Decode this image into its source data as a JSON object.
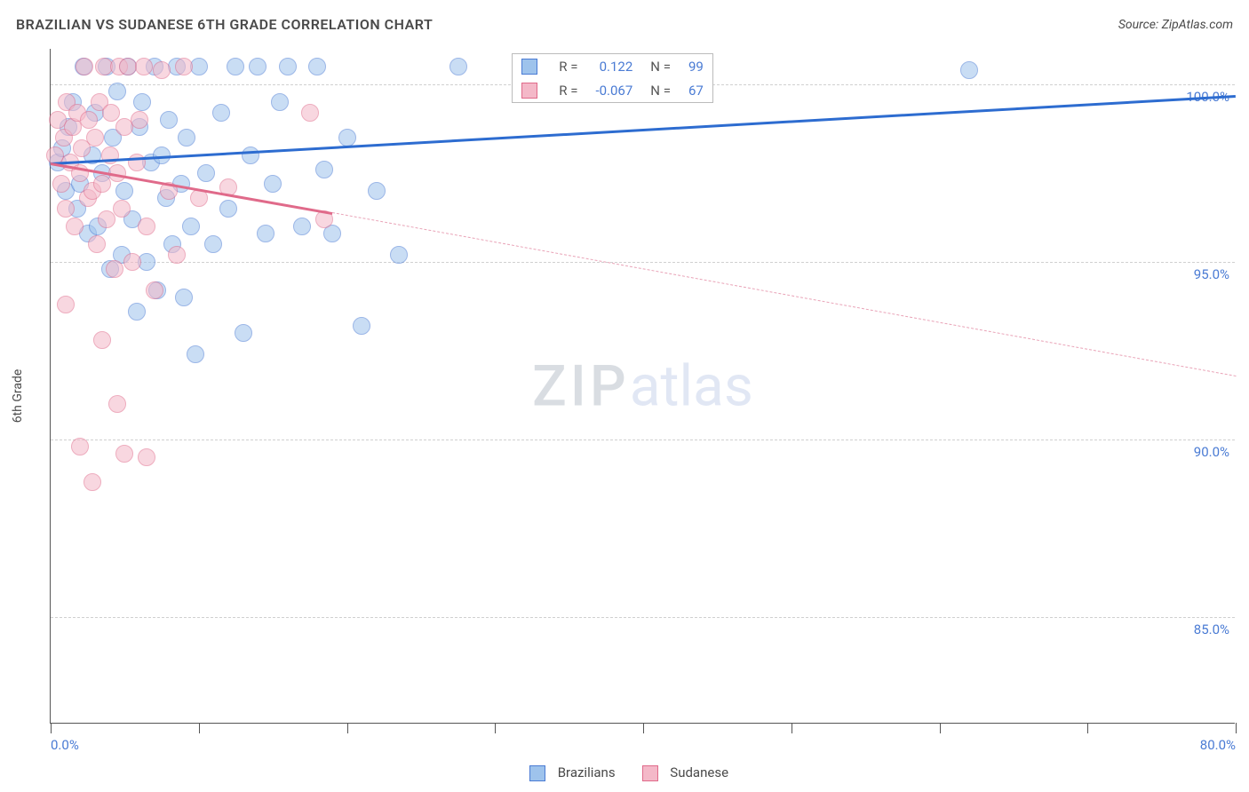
{
  "title": "BRAZILIAN VS SUDANESE 6TH GRADE CORRELATION CHART",
  "source": "Source: ZipAtlas.com",
  "yaxis_title": "6th Grade",
  "watermark": {
    "part1": "ZIP",
    "part2": "atlas"
  },
  "chart": {
    "type": "scatter",
    "xlim": [
      0,
      80
    ],
    "ylim": [
      82,
      101
    ],
    "x_tick_positions": [
      0,
      10,
      20,
      30,
      40,
      50,
      60,
      70,
      80
    ],
    "x_tick_labels": {
      "0": "0.0%",
      "80": "80.0%"
    },
    "y_ticks": [
      85,
      90,
      95,
      100
    ],
    "y_tick_labels": [
      "85.0%",
      "90.0%",
      "95.0%",
      "100.0%"
    ],
    "background_color": "#ffffff",
    "grid_color": "#d0d0d0",
    "axis_color": "#555555",
    "tick_fontsize": 15,
    "tick_color": "#4a7bd4",
    "marker_radius": 10,
    "marker_opacity": 0.55,
    "series": [
      {
        "name": "Brazilians",
        "fill": "#9ec3ec",
        "stroke": "#4a7bd4",
        "trend": {
          "x1": 0,
          "y1": 97.8,
          "x2": 80,
          "y2": 99.7,
          "color": "#2d6cd0",
          "width": 2.5,
          "dashed": false
        },
        "R": "0.122",
        "N": "99",
        "points": [
          [
            0.5,
            97.8
          ],
          [
            0.8,
            98.2
          ],
          [
            1.0,
            97.0
          ],
          [
            1.2,
            98.8
          ],
          [
            1.5,
            99.5
          ],
          [
            1.8,
            96.5
          ],
          [
            2.0,
            97.2
          ],
          [
            2.2,
            100.5
          ],
          [
            2.5,
            95.8
          ],
          [
            2.8,
            98.0
          ],
          [
            3.0,
            99.2
          ],
          [
            3.2,
            96.0
          ],
          [
            3.5,
            97.5
          ],
          [
            3.8,
            100.5
          ],
          [
            4.0,
            94.8
          ],
          [
            4.2,
            98.5
          ],
          [
            4.5,
            99.8
          ],
          [
            4.8,
            95.2
          ],
          [
            5.0,
            97.0
          ],
          [
            5.2,
            100.5
          ],
          [
            5.5,
            96.2
          ],
          [
            5.8,
            93.6
          ],
          [
            6.0,
            98.8
          ],
          [
            6.2,
            99.5
          ],
          [
            6.5,
            95.0
          ],
          [
            6.8,
            97.8
          ],
          [
            7.0,
            100.5
          ],
          [
            7.2,
            94.2
          ],
          [
            7.5,
            98.0
          ],
          [
            7.8,
            96.8
          ],
          [
            8.0,
            99.0
          ],
          [
            8.2,
            95.5
          ],
          [
            8.5,
            100.5
          ],
          [
            8.8,
            97.2
          ],
          [
            9.0,
            94.0
          ],
          [
            9.2,
            98.5
          ],
          [
            9.5,
            96.0
          ],
          [
            9.8,
            92.4
          ],
          [
            10.0,
            100.5
          ],
          [
            10.5,
            97.5
          ],
          [
            11.0,
            95.5
          ],
          [
            11.5,
            99.2
          ],
          [
            12.0,
            96.5
          ],
          [
            12.5,
            100.5
          ],
          [
            13.0,
            93.0
          ],
          [
            13.5,
            98.0
          ],
          [
            14.0,
            100.5
          ],
          [
            14.5,
            95.8
          ],
          [
            15.0,
            97.2
          ],
          [
            15.5,
            99.5
          ],
          [
            16.0,
            100.5
          ],
          [
            17.0,
            96.0
          ],
          [
            18.0,
            100.5
          ],
          [
            18.5,
            97.6
          ],
          [
            19.0,
            95.8
          ],
          [
            20.0,
            98.5
          ],
          [
            21.0,
            93.2
          ],
          [
            22.0,
            97.0
          ],
          [
            23.5,
            95.2
          ],
          [
            27.5,
            100.5
          ],
          [
            62.0,
            100.4
          ]
        ]
      },
      {
        "name": "Sudanese",
        "fill": "#f4b8c8",
        "stroke": "#e06a8a",
        "trend_solid": {
          "x1": 0,
          "y1": 97.8,
          "x2": 19,
          "y2": 96.4,
          "color": "#e06a8a",
          "width": 2.5,
          "dashed": false
        },
        "trend_dash": {
          "x1": 19,
          "y1": 96.4,
          "x2": 80,
          "y2": 91.8,
          "color": "#e9a3b7",
          "width": 1.5,
          "dashed": true
        },
        "R": "-0.067",
        "N": "67",
        "points": [
          [
            0.3,
            98.0
          ],
          [
            0.5,
            99.0
          ],
          [
            0.7,
            97.2
          ],
          [
            0.9,
            98.5
          ],
          [
            1.0,
            96.5
          ],
          [
            1.1,
            99.5
          ],
          [
            1.3,
            97.8
          ],
          [
            1.5,
            98.8
          ],
          [
            1.6,
            96.0
          ],
          [
            1.8,
            99.2
          ],
          [
            2.0,
            97.5
          ],
          [
            2.1,
            98.2
          ],
          [
            2.3,
            100.5
          ],
          [
            2.5,
            96.8
          ],
          [
            2.6,
            99.0
          ],
          [
            2.8,
            97.0
          ],
          [
            3.0,
            98.5
          ],
          [
            3.1,
            95.5
          ],
          [
            3.3,
            99.5
          ],
          [
            3.5,
            97.2
          ],
          [
            3.6,
            100.5
          ],
          [
            3.8,
            96.2
          ],
          [
            4.0,
            98.0
          ],
          [
            4.1,
            99.2
          ],
          [
            4.3,
            94.8
          ],
          [
            4.5,
            97.5
          ],
          [
            4.6,
            100.5
          ],
          [
            4.8,
            96.5
          ],
          [
            5.0,
            98.8
          ],
          [
            5.2,
            100.5
          ],
          [
            5.5,
            95.0
          ],
          [
            5.8,
            97.8
          ],
          [
            6.0,
            99.0
          ],
          [
            6.3,
            100.5
          ],
          [
            6.5,
            96.0
          ],
          [
            7.0,
            94.2
          ],
          [
            7.5,
            100.4
          ],
          [
            8.0,
            97.0
          ],
          [
            8.5,
            95.2
          ],
          [
            9.0,
            100.5
          ],
          [
            1.0,
            93.8
          ],
          [
            2.0,
            89.8
          ],
          [
            2.8,
            88.8
          ],
          [
            3.5,
            92.8
          ],
          [
            4.5,
            91.0
          ],
          [
            5.0,
            89.6
          ],
          [
            6.5,
            89.5
          ],
          [
            10.0,
            96.8
          ],
          [
            12.0,
            97.1
          ],
          [
            17.5,
            99.2
          ],
          [
            18.5,
            96.2
          ]
        ]
      }
    ]
  },
  "legend_top": {
    "R_label": "R =",
    "N_label": "N ="
  },
  "legend_bottom": [
    {
      "label": "Brazilians",
      "fill": "#9ec3ec",
      "stroke": "#4a7bd4"
    },
    {
      "label": "Sudanese",
      "fill": "#f4b8c8",
      "stroke": "#e06a8a"
    }
  ]
}
